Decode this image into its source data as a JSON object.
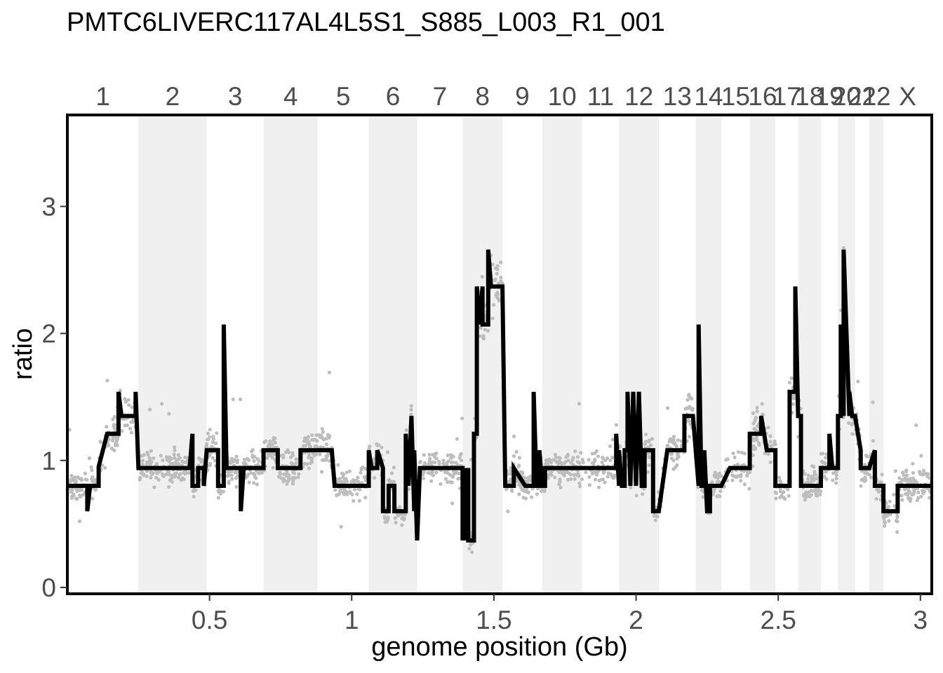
{
  "chart_data": {
    "type": "scatter",
    "title": "PMTC6LIVERC117AL4L5S1_S885_L003_R1_001",
    "xlabel": "genome position (Gb)",
    "ylabel": "ratio",
    "xlim": [
      0.0,
      3.04
    ],
    "ylim": [
      -0.05,
      3.72
    ],
    "x_ticks": [
      0.5,
      1,
      1.5,
      2,
      2.5,
      3
    ],
    "x_tick_labels": [
      "0.5",
      "1",
      "1.5",
      "2",
      "2.5",
      "3"
    ],
    "y_ticks": [
      0,
      1,
      2,
      3
    ],
    "y_tick_labels": [
      "0",
      "1",
      "2",
      "3"
    ],
    "grid": false,
    "legend": "none",
    "colors": {
      "points": "#bdbdbd",
      "segments": "#000000",
      "band": "#f0f0f0",
      "frame": "#000000"
    },
    "chromosomes": [
      {
        "label": "1",
        "start": 0.0,
        "end": 0.25
      },
      {
        "label": "2",
        "start": 0.25,
        "end": 0.49
      },
      {
        "label": "3",
        "start": 0.49,
        "end": 0.69
      },
      {
        "label": "4",
        "start": 0.69,
        "end": 0.88
      },
      {
        "label": "5",
        "start": 0.88,
        "end": 1.06
      },
      {
        "label": "6",
        "start": 1.06,
        "end": 1.23
      },
      {
        "label": "7",
        "start": 1.23,
        "end": 1.39
      },
      {
        "label": "8",
        "start": 1.39,
        "end": 1.53
      },
      {
        "label": "9",
        "start": 1.53,
        "end": 1.67
      },
      {
        "label": "10",
        "start": 1.67,
        "end": 1.81
      },
      {
        "label": "11",
        "start": 1.81,
        "end": 1.94
      },
      {
        "label": "12",
        "start": 1.94,
        "end": 2.08
      },
      {
        "label": "13",
        "start": 2.08,
        "end": 2.21
      },
      {
        "label": "14",
        "start": 2.21,
        "end": 2.3
      },
      {
        "label": "15",
        "start": 2.3,
        "end": 2.4
      },
      {
        "label": "16",
        "start": 2.4,
        "end": 2.49
      },
      {
        "label": "17",
        "start": 2.49,
        "end": 2.57
      },
      {
        "label": "18",
        "start": 2.57,
        "end": 2.65
      },
      {
        "label": "19",
        "start": 2.65,
        "end": 2.71
      },
      {
        "label": "20",
        "start": 2.71,
        "end": 2.77
      },
      {
        "label": "21",
        "start": 2.77,
        "end": 2.82
      },
      {
        "label": "22",
        "start": 2.82,
        "end": 2.87
      },
      {
        "label": "X",
        "start": 2.87,
        "end": 3.04
      }
    ],
    "segments": [
      [
        0.0,
        0.8
      ],
      [
        0.07,
        0.8
      ],
      [
        0.07,
        0.6
      ],
      [
        0.08,
        0.8
      ],
      [
        0.11,
        0.8
      ],
      [
        0.11,
        0.95
      ],
      [
        0.14,
        1.21
      ],
      [
        0.18,
        1.21
      ],
      [
        0.18,
        1.54
      ],
      [
        0.19,
        1.35
      ],
      [
        0.22,
        1.35
      ],
      [
        0.24,
        1.35
      ],
      [
        0.24,
        1.54
      ],
      [
        0.25,
        0.94
      ],
      [
        0.43,
        0.94
      ],
      [
        0.44,
        1.21
      ],
      [
        0.44,
        0.8
      ],
      [
        0.46,
        0.8
      ],
      [
        0.46,
        0.94
      ],
      [
        0.48,
        0.94
      ],
      [
        0.48,
        0.8
      ],
      [
        0.49,
        1.08
      ],
      [
        0.53,
        1.08
      ],
      [
        0.53,
        0.8
      ],
      [
        0.55,
        0.8
      ],
      [
        0.55,
        2.07
      ],
      [
        0.56,
        0.94
      ],
      [
        0.61,
        0.94
      ],
      [
        0.61,
        0.6
      ],
      [
        0.62,
        0.94
      ],
      [
        0.69,
        0.94
      ],
      [
        0.69,
        1.08
      ],
      [
        0.74,
        1.08
      ],
      [
        0.74,
        0.94
      ],
      [
        0.82,
        0.94
      ],
      [
        0.82,
        1.08
      ],
      [
        0.93,
        1.08
      ],
      [
        0.94,
        0.8
      ],
      [
        1.06,
        0.8
      ],
      [
        1.06,
        1.08
      ],
      [
        1.07,
        0.94
      ],
      [
        1.09,
        0.94
      ],
      [
        1.09,
        1.08
      ],
      [
        1.11,
        0.94
      ],
      [
        1.11,
        0.6
      ],
      [
        1.13,
        0.6
      ],
      [
        1.13,
        0.8
      ],
      [
        1.15,
        0.8
      ],
      [
        1.15,
        0.6
      ],
      [
        1.19,
        0.6
      ],
      [
        1.19,
        1.21
      ],
      [
        1.2,
        0.8
      ],
      [
        1.21,
        1.35
      ],
      [
        1.22,
        0.6
      ],
      [
        1.22,
        1.08
      ],
      [
        1.23,
        0.37
      ],
      [
        1.24,
        0.94
      ],
      [
        1.39,
        0.94
      ],
      [
        1.39,
        0.37
      ],
      [
        1.4,
        0.94
      ],
      [
        1.4,
        0.37
      ],
      [
        1.41,
        0.94
      ],
      [
        1.41,
        0.37
      ],
      [
        1.43,
        0.37
      ],
      [
        1.43,
        1.21
      ],
      [
        1.44,
        1.21
      ],
      [
        1.44,
        2.37
      ],
      [
        1.45,
        2.07
      ],
      [
        1.46,
        2.37
      ],
      [
        1.46,
        2.07
      ],
      [
        1.48,
        2.07
      ],
      [
        1.48,
        2.66
      ],
      [
        1.49,
        2.37
      ],
      [
        1.53,
        2.37
      ],
      [
        1.54,
        0.8
      ],
      [
        1.57,
        0.8
      ],
      [
        1.57,
        0.94
      ],
      [
        1.61,
        0.8
      ],
      [
        1.64,
        0.8
      ],
      [
        1.64,
        1.54
      ],
      [
        1.65,
        0.8
      ],
      [
        1.66,
        0.8
      ],
      [
        1.66,
        1.08
      ],
      [
        1.67,
        0.8
      ],
      [
        1.68,
        0.8
      ],
      [
        1.68,
        0.94
      ],
      [
        1.93,
        0.94
      ],
      [
        1.93,
        1.21
      ],
      [
        1.94,
        0.8
      ],
      [
        1.94,
        1.08
      ],
      [
        1.95,
        0.8
      ],
      [
        1.96,
        0.8
      ],
      [
        1.96,
        1.08
      ],
      [
        1.97,
        1.08
      ],
      [
        1.97,
        1.54
      ],
      [
        1.98,
        0.8
      ],
      [
        1.99,
        1.54
      ],
      [
        2.0,
        0.8
      ],
      [
        2.01,
        1.54
      ],
      [
        2.02,
        0.8
      ],
      [
        2.03,
        0.8
      ],
      [
        2.03,
        1.08
      ],
      [
        2.06,
        1.08
      ],
      [
        2.06,
        0.6
      ],
      [
        2.08,
        0.6
      ],
      [
        2.11,
        1.08
      ],
      [
        2.17,
        1.08
      ],
      [
        2.17,
        1.35
      ],
      [
        2.2,
        1.35
      ],
      [
        2.22,
        0.8
      ],
      [
        2.22,
        2.07
      ],
      [
        2.23,
        0.8
      ],
      [
        2.24,
        0.8
      ],
      [
        2.24,
        1.08
      ],
      [
        2.25,
        0.6
      ],
      [
        2.26,
        0.6
      ],
      [
        2.26,
        0.8
      ],
      [
        2.3,
        0.8
      ],
      [
        2.33,
        0.94
      ],
      [
        2.4,
        0.94
      ],
      [
        2.4,
        1.21
      ],
      [
        2.44,
        1.21
      ],
      [
        2.44,
        1.35
      ],
      [
        2.46,
        1.08
      ],
      [
        2.48,
        1.08
      ],
      [
        2.48,
        1.08
      ],
      [
        2.49,
        1.08
      ],
      [
        2.49,
        0.8
      ],
      [
        2.54,
        0.8
      ],
      [
        2.54,
        1.54
      ],
      [
        2.56,
        1.54
      ],
      [
        2.56,
        2.37
      ],
      [
        2.57,
        1.35
      ],
      [
        2.58,
        1.35
      ],
      [
        2.58,
        0.8
      ],
      [
        2.65,
        0.8
      ],
      [
        2.65,
        0.94
      ],
      [
        2.68,
        0.94
      ],
      [
        2.68,
        1.21
      ],
      [
        2.69,
        0.94
      ],
      [
        2.71,
        0.94
      ],
      [
        2.71,
        1.35
      ],
      [
        2.72,
        1.35
      ],
      [
        2.72,
        2.07
      ],
      [
        2.73,
        1.35
      ],
      [
        2.73,
        2.66
      ],
      [
        2.75,
        1.35
      ],
      [
        2.75,
        1.54
      ],
      [
        2.76,
        1.35
      ],
      [
        2.77,
        1.35
      ],
      [
        2.79,
        1.08
      ],
      [
        2.79,
        0.94
      ],
      [
        2.82,
        0.94
      ],
      [
        2.84,
        1.08
      ],
      [
        2.84,
        0.8
      ],
      [
        2.87,
        0.8
      ],
      [
        2.87,
        0.6
      ],
      [
        2.92,
        0.6
      ],
      [
        2.92,
        0.8
      ],
      [
        3.04,
        0.8
      ]
    ]
  }
}
